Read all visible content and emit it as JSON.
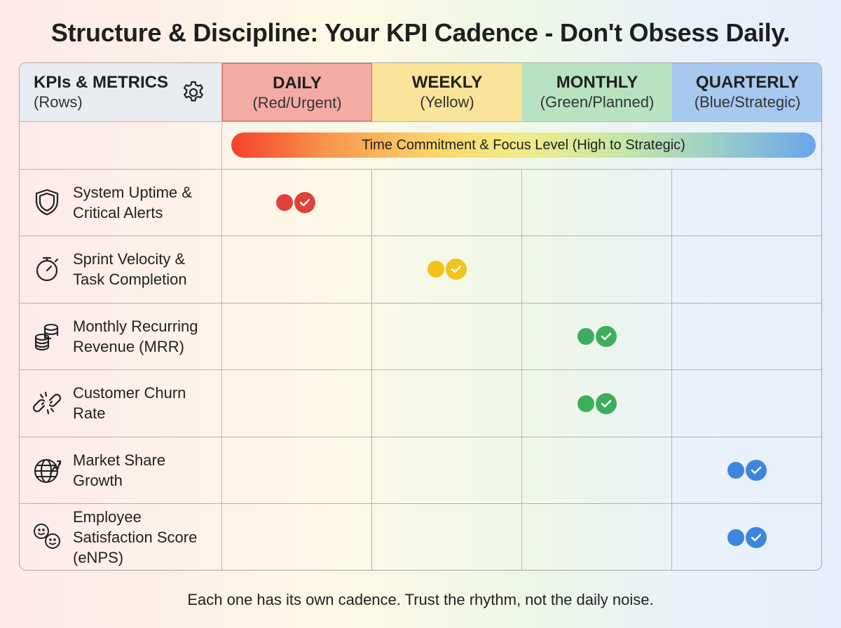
{
  "title": "Structure & Discipline: Your KPI Cadence - Don't Obsess Daily.",
  "header": {
    "corner_title": "KPIs & METRICS",
    "corner_sub": "(Rows)",
    "columns": [
      {
        "name": "DAILY",
        "sub": "(Red/Urgent)",
        "color": "#f4aaa5"
      },
      {
        "name": "WEEKLY",
        "sub": "(Yellow)",
        "color": "#fae49a"
      },
      {
        "name": "MONTHLY",
        "sub": "(Green/Planned)",
        "color": "#b9e3c0"
      },
      {
        "name": "QUARTERLY",
        "sub": "(Blue/Strategic)",
        "color": "#a7c8ef"
      }
    ]
  },
  "focus_bar": "Time Commitment & Focus Level (High to Strategic)",
  "rows": [
    {
      "label_1": "System Uptime &",
      "label_2": "Critical Alerts",
      "icon": "shield-icon",
      "cadence": "DAILY",
      "color": "#e0433a"
    },
    {
      "label_1": "Sprint Velocity &",
      "label_2": "Task Completion",
      "icon": "stopwatch-icon",
      "cadence": "WEEKLY",
      "color": "#f0c419"
    },
    {
      "label_1": "Monthly Recurring",
      "label_2": "Revenue (MRR)",
      "icon": "coin-stack-icon",
      "cadence": "MONTHLY",
      "color": "#3fae5a"
    },
    {
      "label_1": "Customer Churn",
      "label_2": "Rate",
      "icon": "broken-link-icon",
      "cadence": "MONTHLY",
      "color": "#3fae5a"
    },
    {
      "label_1": "Market Share",
      "label_2": "Growth",
      "icon": "globe-growth-icon",
      "cadence": "QUARTERLY",
      "color": "#3d85e0"
    },
    {
      "label_1": "Employee",
      "label_2": "Satisfaction Score",
      "label_3": "(eNPS)",
      "icon": "smiley-faces-icon",
      "cadence": "QUARTERLY",
      "color": "#3d85e0"
    }
  ],
  "footer": "Each one has its own cadence. Trust the rhythm, not the daily noise."
}
